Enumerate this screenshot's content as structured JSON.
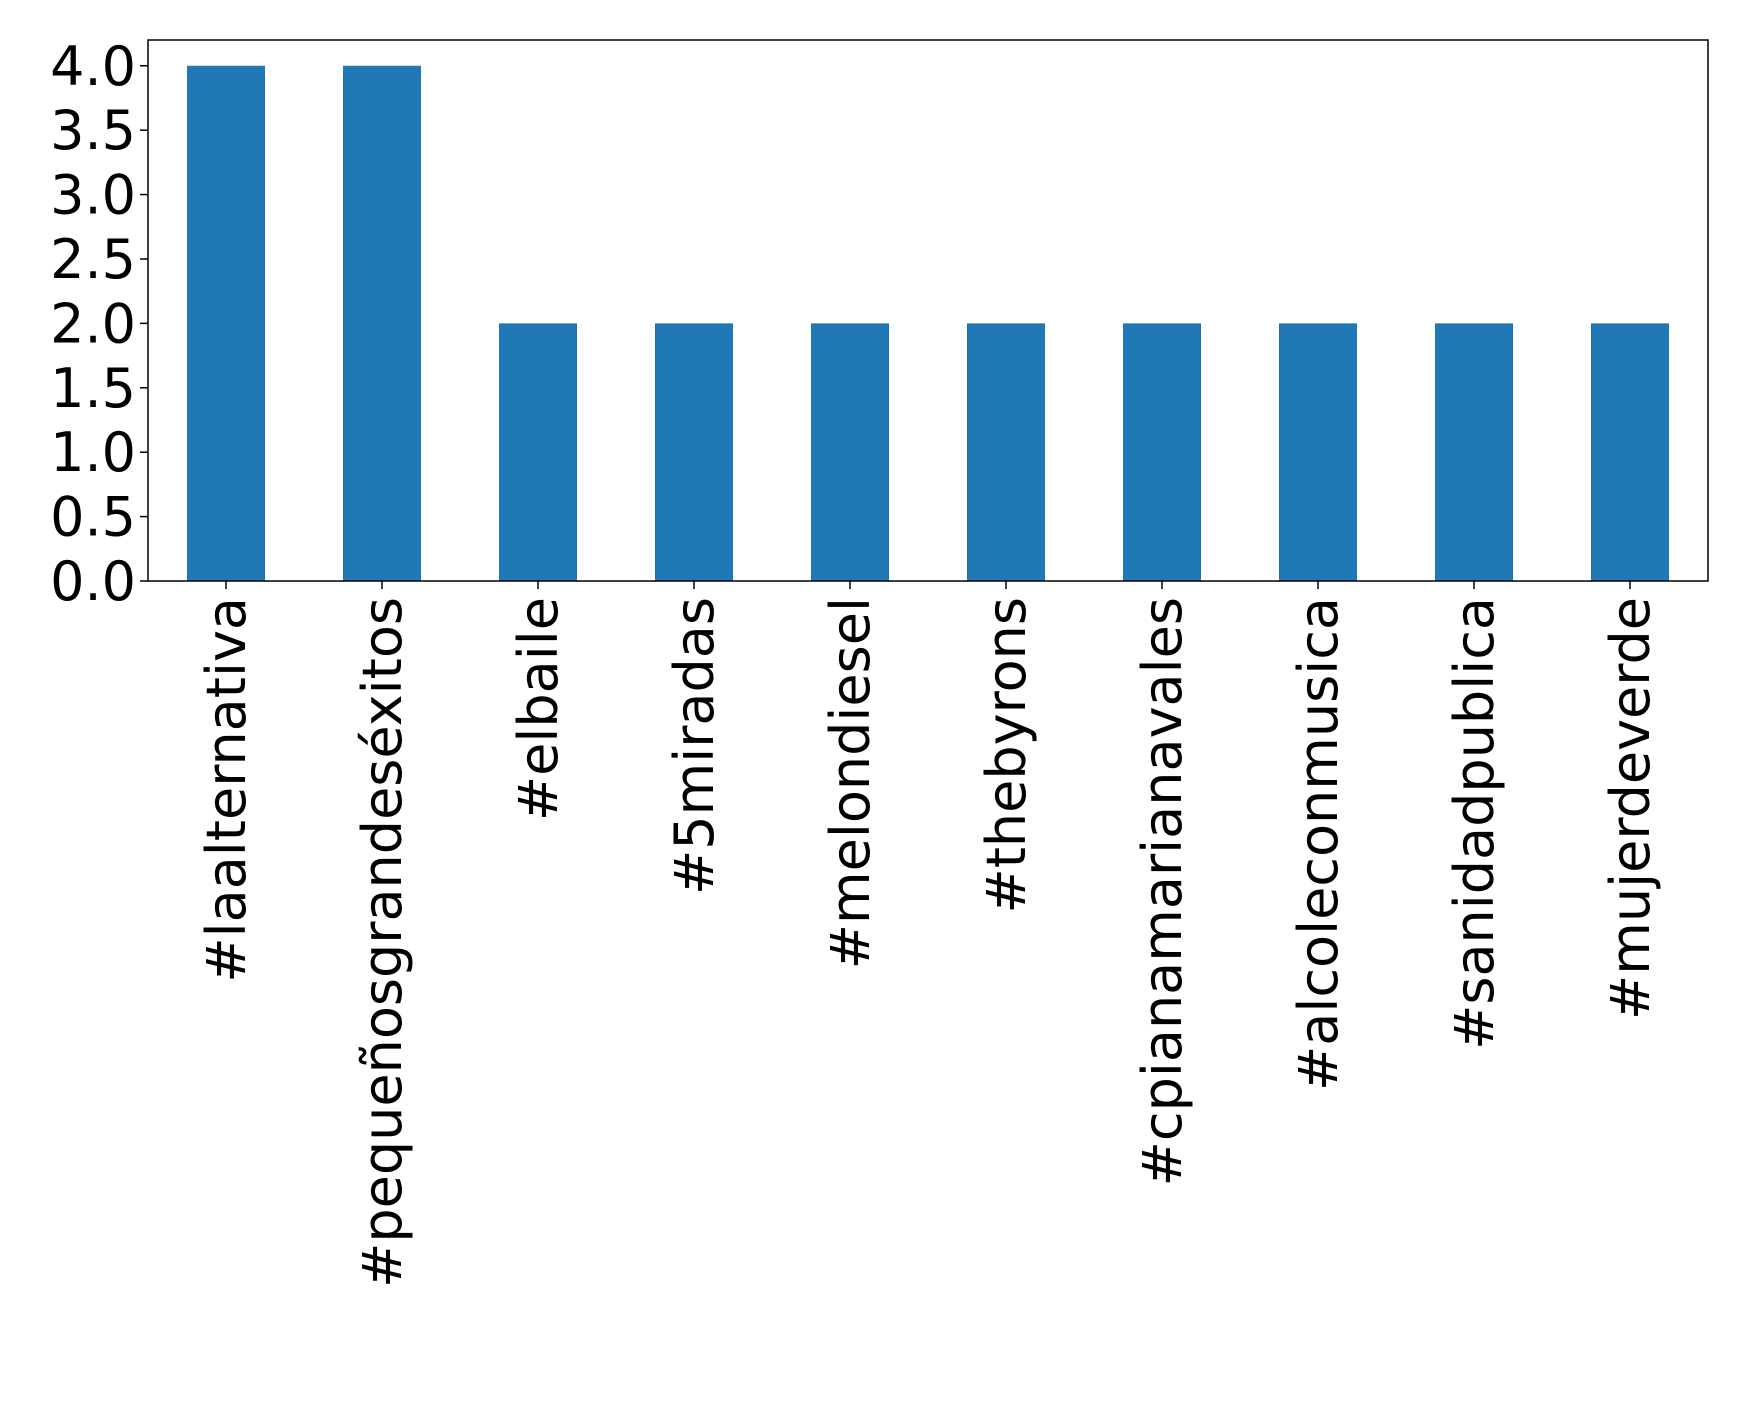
{
  "chart_data": {
    "type": "bar",
    "categories": [
      "#laalternativa",
      "#pequeñosgrandeséxitos",
      "#elbaile",
      "#5miradas",
      "#melondiesel",
      "#thebyrons",
      "#cpianamarianavales",
      "#alcoleconmusica",
      "#sanidadpublica",
      "#mujerdeverde"
    ],
    "values": [
      4,
      4,
      2,
      2,
      2,
      2,
      2,
      2,
      2,
      2
    ],
    "color": "#1f77b4",
    "ylim": [
      0,
      4.2
    ],
    "yticks": [
      {
        "value": 0,
        "label": "0.0"
      },
      {
        "value": 0.5,
        "label": "0.5"
      },
      {
        "value": 1,
        "label": "1.0"
      },
      {
        "value": 1.5,
        "label": "1.5"
      },
      {
        "value": 2,
        "label": "2.0"
      },
      {
        "value": 2.5,
        "label": "2.5"
      },
      {
        "value": 3,
        "label": "3.0"
      },
      {
        "value": 3.5,
        "label": "3.5"
      },
      {
        "value": 4,
        "label": "4.0"
      }
    ],
    "grid": false
  }
}
